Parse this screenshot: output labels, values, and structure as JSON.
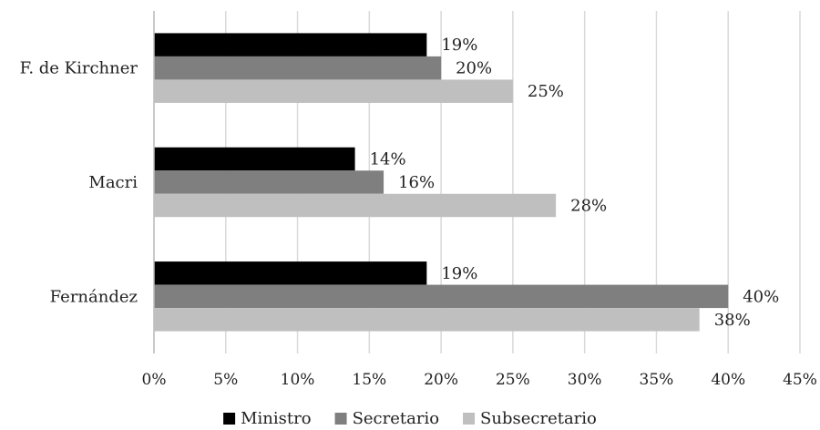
{
  "chart_data": {
    "type": "bar",
    "orientation": "horizontal",
    "title": "",
    "xlabel": "",
    "ylabel": "",
    "categories": [
      "F. de Kirchner",
      "Macri",
      "Fernández"
    ],
    "series": [
      {
        "name": "Ministro",
        "color": "#000000",
        "values": [
          19,
          14,
          19
        ],
        "labels": [
          "19%",
          "14%",
          "19%"
        ]
      },
      {
        "name": "Secretario",
        "color": "#7f7f7f",
        "values": [
          20,
          16,
          40
        ],
        "labels": [
          "20%",
          "16%",
          "40%"
        ]
      },
      {
        "name": "Subsecretario",
        "color": "#bfbfbf",
        "values": [
          25,
          28,
          38
        ],
        "labels": [
          "25%",
          "28%",
          "38%"
        ]
      }
    ],
    "xlim": [
      0,
      45
    ],
    "xticks": [
      0,
      5,
      10,
      15,
      20,
      25,
      30,
      35,
      40,
      45
    ],
    "xtick_labels": [
      "0%",
      "5%",
      "10%",
      "15%",
      "20%",
      "25%",
      "30%",
      "35%",
      "40%",
      "45%"
    ],
    "grid": "vertical",
    "legend_position": "bottom"
  }
}
